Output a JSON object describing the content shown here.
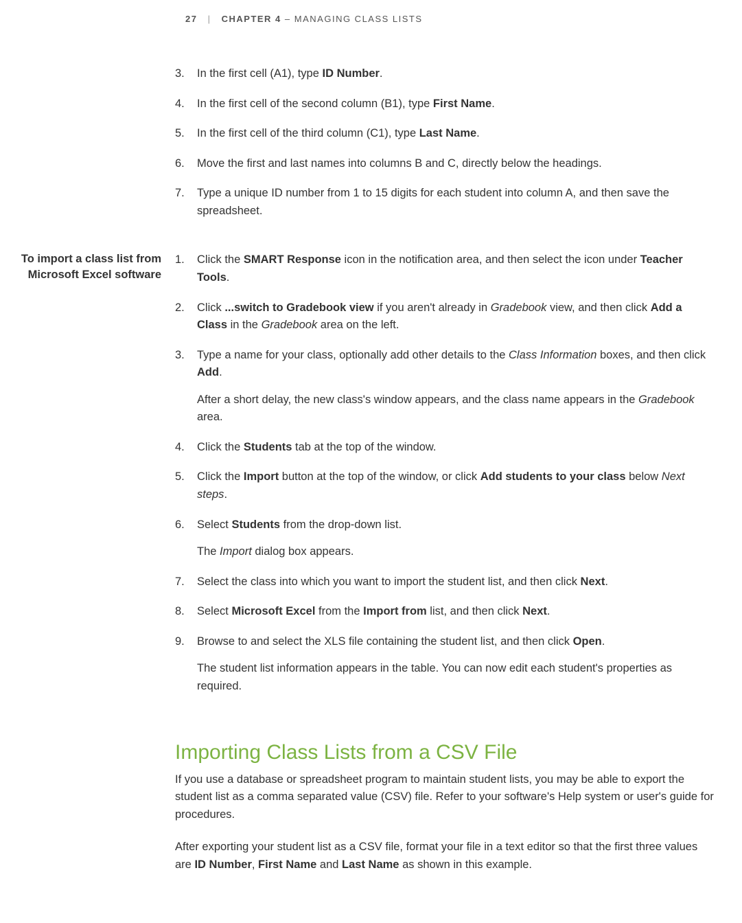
{
  "header": {
    "page_num": "27",
    "separator": "|",
    "chapter_label": "CHAPTER 4",
    "dash": "–",
    "chapter_title": "MANAGING CLASS LISTS"
  },
  "list1": [
    {
      "n": "3.",
      "html": "In the first cell (A1), type <b>ID Number</b>."
    },
    {
      "n": "4.",
      "html": "In the first cell of the second column (B1), type <b>First Name</b>."
    },
    {
      "n": "5.",
      "html": "In the first cell of the third column (C1), type <b>Last Name</b>."
    },
    {
      "n": "6.",
      "html": "Move the first and last names into columns B and C, directly below the headings."
    },
    {
      "n": "7.",
      "html": "Type a unique ID number from 1 to 15 digits for each student into column A, and then save the spreadsheet."
    }
  ],
  "side_label": "To import a class list from Microsoft Excel software",
  "list2": [
    {
      "n": "1.",
      "html": "Click the <b>SMART Response</b> icon in the notification area, and then select the icon under <b>Teacher Tools</b>."
    },
    {
      "n": "2.",
      "html": "Click <b>...switch to Gradebook view</b> if you aren't already in <i>Gradebook</i> view, and then click <b>Add a Class</b> in the <i>Gradebook</i> area on the left."
    },
    {
      "n": "3.",
      "html": "Type a name for your class, optionally add other details to the <i>Class Information</i> boxes, and then click <b>Add</b>.",
      "after": "After a short delay, the new class's window appears, and the class name appears in the <i>Gradebook</i> area."
    },
    {
      "n": "4.",
      "html": "Click the <b>Students</b> tab at the top of the window."
    },
    {
      "n": "5.",
      "html": "Click the <b>Import</b> button at the top of the window, or click <b>Add students to your class</b> below <i>Next steps</i>."
    },
    {
      "n": "6.",
      "html": "Select <b>Students</b> from the drop-down list.",
      "after": "The <i>Import</i> dialog box appears."
    },
    {
      "n": "7.",
      "html": "Select the class into which you want to import the student list, and then click <b>Next</b>."
    },
    {
      "n": "8.",
      "html": "Select <b>Microsoft Excel</b> from the <b>Import from</b> list, and then click <b>Next</b>."
    },
    {
      "n": "9.",
      "html": "Browse to and select the XLS file containing the student list, and then click <b>Open</b>.",
      "after": "The student list information appears in the table. You can now edit each student's properties as required."
    }
  ],
  "section": {
    "heading": "Importing Class Lists from a CSV File",
    "para1": "If you use a database or spreadsheet program to maintain student lists, you may be able to export the student list as a comma separated value (CSV) file. Refer to your software's Help system or user's guide for procedures.",
    "para2_html": "After exporting your student list as a CSV file, format your file in a text editor so that the first three values are <b>ID Number</b>, <b>First Name</b> and <b>Last Name</b> as shown in this example."
  },
  "colors": {
    "heading_green": "#7cb342",
    "text": "#333333",
    "header_text": "#555555"
  }
}
